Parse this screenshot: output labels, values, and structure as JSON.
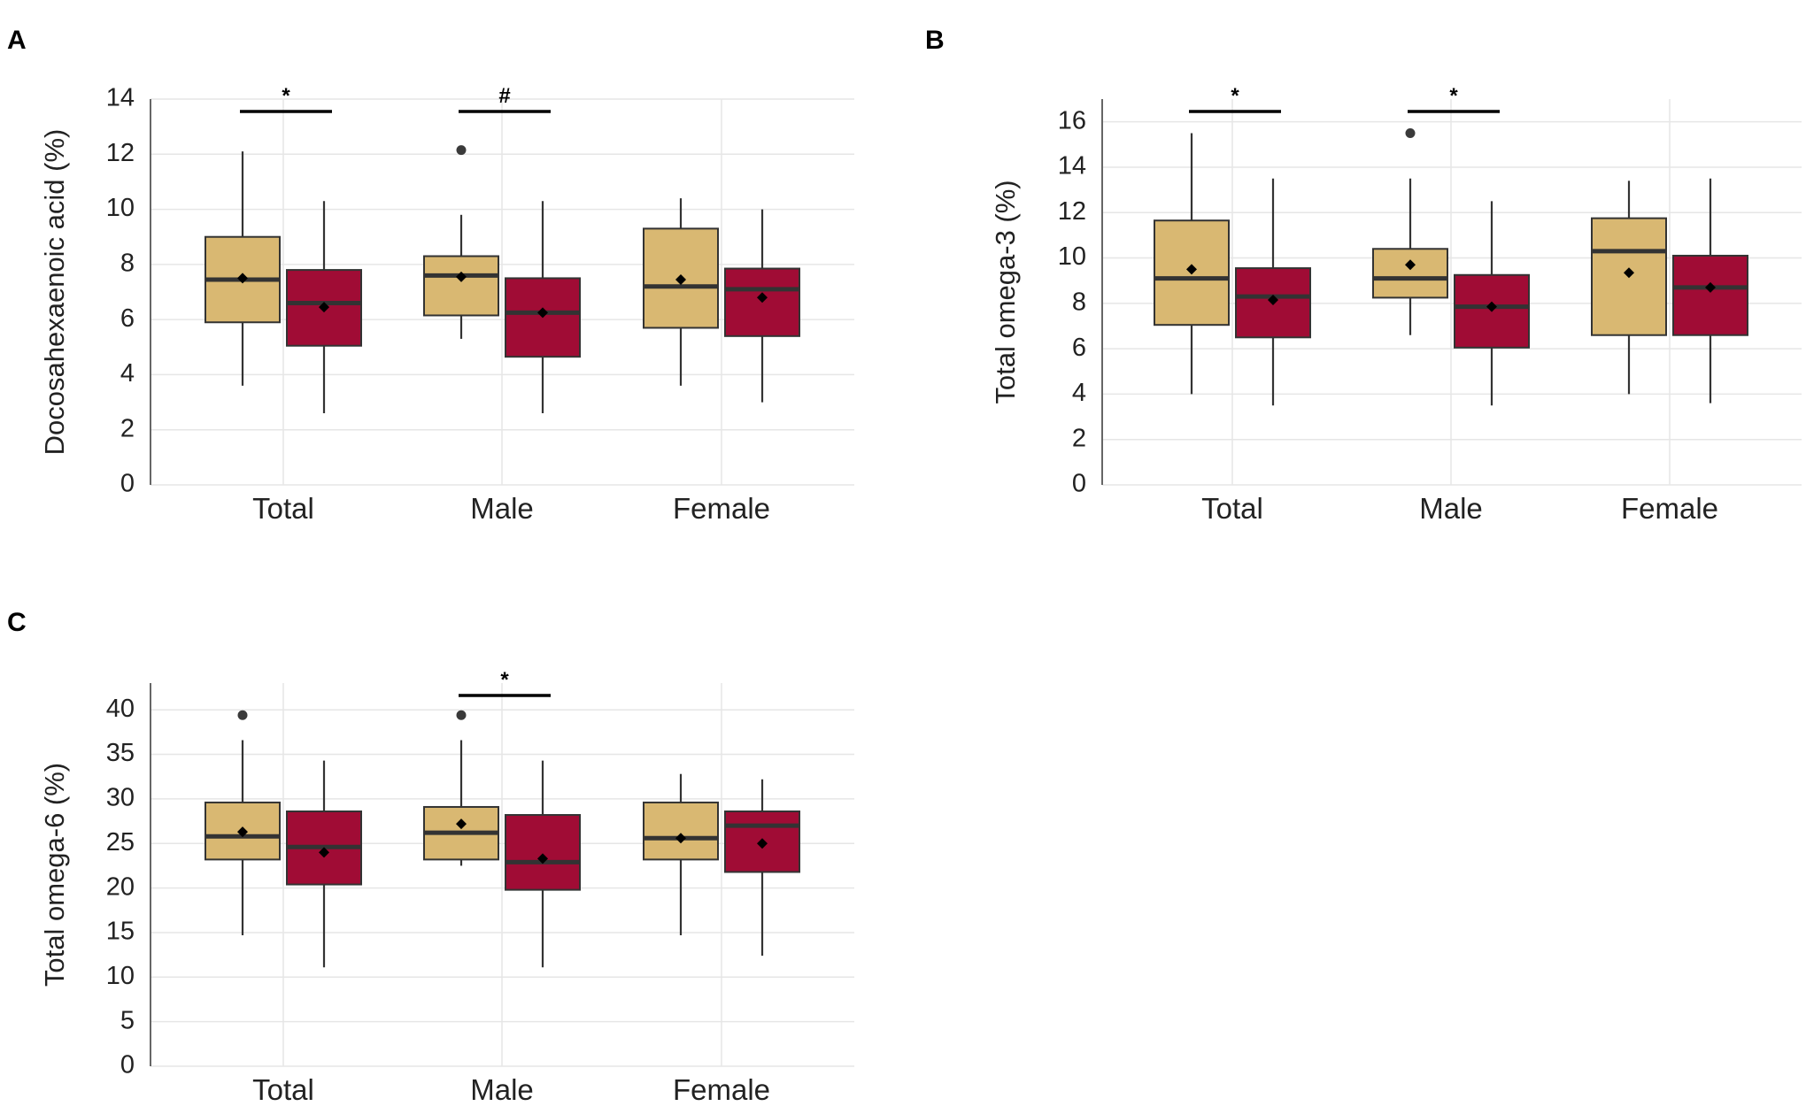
{
  "figure": {
    "colors": {
      "group1_fill": "#d9b872",
      "group2_fill": "#a00c35",
      "box_stroke": "#333333",
      "median": "#333333",
      "grid": "#e6e6e6",
      "axis": "#666666",
      "mean_marker": "#000000",
      "outlier": "#3a3a3a"
    }
  },
  "chart_data": [
    {
      "panel": "A",
      "type": "box",
      "ylabel": "Docosahexaenoic acid (%)",
      "ylim": [
        0,
        14
      ],
      "yticks": [
        0,
        2,
        4,
        6,
        8,
        10,
        12,
        14
      ],
      "categories": [
        "Total",
        "Male",
        "Female"
      ],
      "series_colors": [
        "#d9b872",
        "#a00c35"
      ],
      "boxes": [
        [
          {
            "whisker_low": 3.6,
            "q1": 5.9,
            "median": 7.45,
            "q3": 9.0,
            "whisker_high": 12.1,
            "mean": 7.5,
            "outliers": []
          },
          {
            "whisker_low": 2.6,
            "q1": 5.05,
            "median": 6.6,
            "q3": 7.8,
            "whisker_high": 10.3,
            "mean": 6.45,
            "outliers": []
          }
        ],
        [
          {
            "whisker_low": 5.3,
            "q1": 6.15,
            "median": 7.6,
            "q3": 8.3,
            "whisker_high": 9.8,
            "mean": 7.55,
            "outliers": [
              12.15
            ]
          },
          {
            "whisker_low": 2.6,
            "q1": 4.65,
            "median": 6.25,
            "q3": 7.5,
            "whisker_high": 10.3,
            "mean": 6.25,
            "outliers": []
          }
        ],
        [
          {
            "whisker_low": 3.6,
            "q1": 5.7,
            "median": 7.2,
            "q3": 9.3,
            "whisker_high": 10.4,
            "mean": 7.45,
            "outliers": []
          },
          {
            "whisker_low": 3.0,
            "q1": 5.4,
            "median": 7.1,
            "q3": 7.85,
            "whisker_high": 10.0,
            "mean": 6.8,
            "outliers": []
          }
        ]
      ],
      "significance": [
        {
          "category": "Total",
          "label": "*"
        },
        {
          "category": "Male",
          "label": "#"
        }
      ]
    },
    {
      "panel": "B",
      "type": "box",
      "ylabel": "Total omega-3 (%)",
      "ylim": [
        0,
        17
      ],
      "yticks": [
        0,
        2,
        4,
        6,
        8,
        10,
        12,
        14,
        16
      ],
      "categories": [
        "Total",
        "Male",
        "Female"
      ],
      "series_colors": [
        "#d9b872",
        "#a00c35"
      ],
      "boxes": [
        [
          {
            "whisker_low": 4.0,
            "q1": 7.05,
            "median": 9.1,
            "q3": 11.65,
            "whisker_high": 15.5,
            "mean": 9.5,
            "outliers": []
          },
          {
            "whisker_low": 3.5,
            "q1": 6.5,
            "median": 8.3,
            "q3": 9.55,
            "whisker_high": 13.5,
            "mean": 8.15,
            "outliers": []
          }
        ],
        [
          {
            "whisker_low": 6.6,
            "q1": 8.25,
            "median": 9.1,
            "q3": 10.4,
            "whisker_high": 13.5,
            "mean": 9.7,
            "outliers": [
              15.5
            ]
          },
          {
            "whisker_low": 3.5,
            "q1": 6.05,
            "median": 7.85,
            "q3": 9.25,
            "whisker_high": 12.5,
            "mean": 7.85,
            "outliers": []
          }
        ],
        [
          {
            "whisker_low": 4.0,
            "q1": 6.6,
            "median": 10.3,
            "q3": 11.75,
            "whisker_high": 13.4,
            "mean": 9.35,
            "outliers": []
          },
          {
            "whisker_low": 3.6,
            "q1": 6.6,
            "median": 8.7,
            "q3": 10.1,
            "whisker_high": 13.5,
            "mean": 8.7,
            "outliers": []
          }
        ]
      ],
      "significance": [
        {
          "category": "Total",
          "label": "*"
        },
        {
          "category": "Male",
          "label": "*"
        }
      ]
    },
    {
      "panel": "C",
      "type": "box",
      "ylabel": "Total omega-6 (%)",
      "ylim": [
        0,
        43
      ],
      "yticks": [
        0,
        5,
        10,
        15,
        20,
        25,
        30,
        35,
        40
      ],
      "categories": [
        "Total",
        "Male",
        "Female"
      ],
      "series_colors": [
        "#d9b872",
        "#a00c35"
      ],
      "boxes": [
        [
          {
            "whisker_low": 14.7,
            "q1": 23.2,
            "median": 25.8,
            "q3": 29.6,
            "whisker_high": 36.6,
            "mean": 26.3,
            "outliers": [
              39.4
            ]
          },
          {
            "whisker_low": 11.1,
            "q1": 20.4,
            "median": 24.6,
            "q3": 28.6,
            "whisker_high": 34.3,
            "mean": 24.0,
            "outliers": []
          }
        ],
        [
          {
            "whisker_low": 22.5,
            "q1": 23.2,
            "median": 26.2,
            "q3": 29.1,
            "whisker_high": 36.6,
            "mean": 27.2,
            "outliers": [
              39.4
            ]
          },
          {
            "whisker_low": 11.1,
            "q1": 19.8,
            "median": 22.9,
            "q3": 28.2,
            "whisker_high": 34.3,
            "mean": 23.3,
            "outliers": []
          }
        ],
        [
          {
            "whisker_low": 14.7,
            "q1": 23.2,
            "median": 25.6,
            "q3": 29.6,
            "whisker_high": 32.8,
            "mean": 25.6,
            "outliers": []
          },
          {
            "whisker_low": 12.4,
            "q1": 21.8,
            "median": 27.0,
            "q3": 28.6,
            "whisker_high": 32.2,
            "mean": 25.0,
            "outliers": []
          }
        ]
      ],
      "significance": [
        {
          "category": "Male",
          "label": "*"
        }
      ]
    }
  ]
}
